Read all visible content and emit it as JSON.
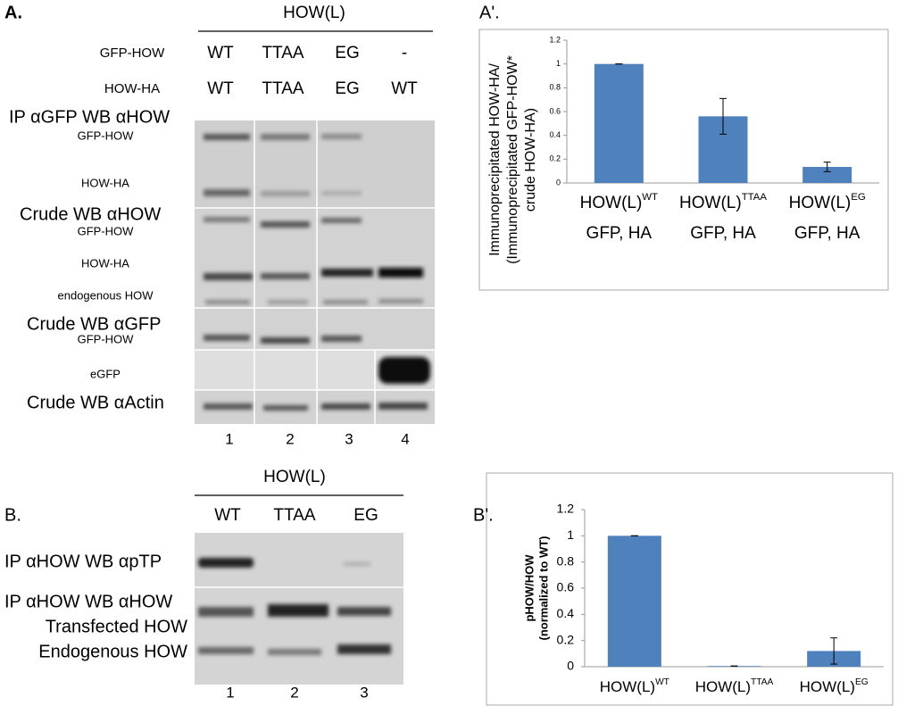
{
  "panel_a": {
    "label": "A.",
    "header": "HOW(L)",
    "construct_rows": [
      {
        "label": "GFP-HOW",
        "values": [
          "WT",
          "TTAA",
          "EG",
          "-"
        ]
      },
      {
        "label": "HOW-HA",
        "values": [
          "WT",
          "TTAA",
          "EG",
          "WT"
        ]
      }
    ],
    "blot_labels": [
      "IP αGFP WB αHOW",
      "GFP-HOW",
      "HOW-HA",
      "Crude WB αHOW",
      "GFP-HOW",
      "HOW-HA",
      "endogenous HOW",
      "Crude WB αGFP",
      "GFP-HOW",
      "eGFP",
      "Crude WB αActin"
    ],
    "lanes": [
      "1",
      "2",
      "3",
      "4"
    ]
  },
  "panel_b": {
    "label": "B.",
    "header": "HOW(L)",
    "conditions": [
      "WT",
      "TTAA",
      "EG"
    ],
    "blot_labels": [
      "IP αHOW WB αpTP",
      "IP αHOW WB αHOW",
      "Transfected HOW",
      "Endogenous HOW"
    ],
    "lanes": [
      "1",
      "2",
      "3"
    ]
  },
  "chart_data": [
    {
      "type": "bar",
      "panel_label": "A'.",
      "y_label_lines": [
        "Immunoprecipitated HOW-HA/",
        "(Immunoprecipitated GFP-HOW*",
        "crude HOW-HA)"
      ],
      "categories": [
        "HOW(L)",
        "HOW(L)",
        "HOW(L)"
      ],
      "category_superscripts": [
        "WT",
        "TTAA",
        "EG"
      ],
      "category_second_lines": [
        "GFP, HA",
        "GFP, HA",
        "GFP, HA"
      ],
      "values": [
        1,
        0.56,
        0.135
      ],
      "errors": [
        0,
        0.15,
        0.04
      ],
      "color": "#4f81bd",
      "ylim": [
        0,
        1.2
      ],
      "yticks": [
        0,
        0.2,
        0.4,
        0.6,
        0.8,
        1,
        1.2
      ],
      "grid": false
    },
    {
      "type": "bar",
      "panel_label": "B'.",
      "y_label_lines": [
        "pHOW/HOW",
        "(normalized to WT)"
      ],
      "categories": [
        "HOW(L)",
        "HOW(L)",
        "HOW(L)"
      ],
      "category_superscripts": [
        "WT",
        "TTAA",
        "EG"
      ],
      "values": [
        1,
        0.005,
        0.12
      ],
      "errors": [
        0,
        0,
        0.1
      ],
      "color": "#4f81bd",
      "ylim": [
        0,
        1.2
      ],
      "yticks": [
        0,
        0.2,
        0.4,
        0.6,
        0.8,
        1,
        1.2
      ],
      "grid": false
    }
  ]
}
